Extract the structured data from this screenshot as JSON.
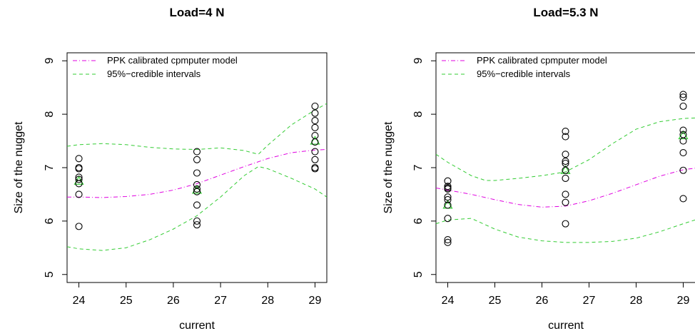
{
  "chart_data": [
    {
      "type": "scatter",
      "title": "Load=4 N",
      "xlabel": "current",
      "ylabel": "Size of the nugget",
      "xlim": [
        23.75,
        29.25
      ],
      "ylim": [
        4.85,
        9.15
      ],
      "xticks": [
        24,
        25,
        26,
        27,
        28,
        29
      ],
      "yticks": [
        5,
        6,
        7,
        8,
        9
      ],
      "legend": {
        "position": "top-left",
        "entries": [
          {
            "label": "PPK calibrated cpmputer model",
            "color": "#e000e0",
            "dash": "dashdot"
          },
          {
            "label": "95%−credible intervals",
            "color": "#33cc33",
            "dash": "dashed"
          }
        ]
      },
      "observations": [
        {
          "x": 24,
          "y": 5.9
        },
        {
          "x": 24,
          "y": 6.5
        },
        {
          "x": 24,
          "y": 6.7
        },
        {
          "x": 24,
          "y": 6.78
        },
        {
          "x": 24,
          "y": 6.82
        },
        {
          "x": 24,
          "y": 6.98
        },
        {
          "x": 24,
          "y": 7.0
        },
        {
          "x": 24,
          "y": 7.17
        },
        {
          "x": 26.5,
          "y": 5.93
        },
        {
          "x": 26.5,
          "y": 6.0
        },
        {
          "x": 26.5,
          "y": 6.3
        },
        {
          "x": 26.5,
          "y": 6.55
        },
        {
          "x": 26.5,
          "y": 6.6
        },
        {
          "x": 26.5,
          "y": 6.68
        },
        {
          "x": 26.5,
          "y": 6.9
        },
        {
          "x": 26.5,
          "y": 7.15
        },
        {
          "x": 26.5,
          "y": 7.3
        },
        {
          "x": 29,
          "y": 6.98
        },
        {
          "x": 29,
          "y": 7.0
        },
        {
          "x": 29,
          "y": 7.15
        },
        {
          "x": 29,
          "y": 7.3
        },
        {
          "x": 29,
          "y": 7.48
        },
        {
          "x": 29,
          "y": 7.6
        },
        {
          "x": 29,
          "y": 7.75
        },
        {
          "x": 29,
          "y": 7.88
        },
        {
          "x": 29,
          "y": 8.02
        },
        {
          "x": 29,
          "y": 8.15
        }
      ],
      "predictions": [
        {
          "x": 24,
          "y": 6.75
        },
        {
          "x": 26.5,
          "y": 6.58
        },
        {
          "x": 29,
          "y": 7.5
        }
      ],
      "series": [
        {
          "key": "model",
          "x": [
            23.75,
            24,
            24.5,
            25,
            25.5,
            26,
            26.5,
            27,
            27.5,
            28,
            28.5,
            29,
            29.25
          ],
          "values": [
            6.45,
            6.45,
            6.44,
            6.46,
            6.5,
            6.58,
            6.7,
            6.86,
            7.02,
            7.17,
            7.28,
            7.33,
            7.34
          ]
        },
        {
          "key": "upper",
          "x": [
            23.75,
            24,
            24.5,
            25,
            25.5,
            26,
            26.5,
            27,
            27.5,
            27.8,
            28,
            28.5,
            29,
            29.25
          ],
          "values": [
            7.4,
            7.43,
            7.45,
            7.43,
            7.38,
            7.35,
            7.34,
            7.37,
            7.32,
            7.25,
            7.42,
            7.8,
            8.08,
            8.2
          ]
        },
        {
          "key": "lower",
          "x": [
            23.75,
            24,
            24.5,
            25,
            25.5,
            26,
            26.5,
            27,
            27.5,
            27.8,
            28,
            28.5,
            29,
            29.25
          ],
          "values": [
            5.52,
            5.48,
            5.45,
            5.5,
            5.65,
            5.85,
            6.1,
            6.45,
            6.85,
            7.02,
            6.98,
            6.8,
            6.6,
            6.45
          ]
        }
      ],
      "colors": {
        "model": "#e000e0",
        "interval": "#33cc33",
        "prediction": "#33cc33",
        "point": "#000000"
      }
    },
    {
      "type": "scatter",
      "title": "Load=5.3 N",
      "xlabel": "current",
      "ylabel": "Size of the nugget",
      "xlim": [
        23.75,
        29.25
      ],
      "ylim": [
        4.85,
        9.15
      ],
      "xticks": [
        24,
        25,
        26,
        27,
        28,
        29
      ],
      "yticks": [
        5,
        6,
        7,
        8,
        9
      ],
      "legend": {
        "position": "top-left",
        "entries": [
          {
            "label": "PPK calibrated cpmputer model",
            "color": "#e000e0",
            "dash": "dashdot"
          },
          {
            "label": "95%−credible intervals",
            "color": "#33cc33",
            "dash": "dashed"
          }
        ]
      },
      "observations": [
        {
          "x": 24,
          "y": 5.6
        },
        {
          "x": 24,
          "y": 5.65
        },
        {
          "x": 24,
          "y": 6.05
        },
        {
          "x": 24,
          "y": 6.3
        },
        {
          "x": 24,
          "y": 6.4
        },
        {
          "x": 24,
          "y": 6.45
        },
        {
          "x": 24,
          "y": 6.6
        },
        {
          "x": 24,
          "y": 6.62
        },
        {
          "x": 24,
          "y": 6.65
        },
        {
          "x": 24,
          "y": 6.75
        },
        {
          "x": 26.5,
          "y": 5.95
        },
        {
          "x": 26.5,
          "y": 6.35
        },
        {
          "x": 26.5,
          "y": 6.5
        },
        {
          "x": 26.5,
          "y": 6.8
        },
        {
          "x": 26.5,
          "y": 6.95
        },
        {
          "x": 26.5,
          "y": 7.08
        },
        {
          "x": 26.5,
          "y": 7.12
        },
        {
          "x": 26.5,
          "y": 7.25
        },
        {
          "x": 26.5,
          "y": 7.58
        },
        {
          "x": 26.5,
          "y": 7.68
        },
        {
          "x": 29,
          "y": 6.42
        },
        {
          "x": 29,
          "y": 6.95
        },
        {
          "x": 29,
          "y": 7.28
        },
        {
          "x": 29,
          "y": 7.5
        },
        {
          "x": 29,
          "y": 7.62
        },
        {
          "x": 29,
          "y": 7.7
        },
        {
          "x": 29,
          "y": 8.15
        },
        {
          "x": 29,
          "y": 8.32
        },
        {
          "x": 29,
          "y": 8.37
        }
      ],
      "predictions": [
        {
          "x": 24,
          "y": 6.3
        },
        {
          "x": 26.5,
          "y": 6.95
        },
        {
          "x": 29,
          "y": 7.6
        }
      ],
      "series": [
        {
          "key": "model",
          "x": [
            23.75,
            24,
            24.5,
            25,
            25.5,
            26,
            26.5,
            27,
            27.5,
            28,
            28.5,
            29,
            29.25
          ],
          "values": [
            6.62,
            6.58,
            6.5,
            6.4,
            6.31,
            6.26,
            6.28,
            6.38,
            6.52,
            6.68,
            6.84,
            6.96,
            6.99
          ]
        },
        {
          "key": "upper",
          "x": [
            23.75,
            24,
            24.5,
            24.8,
            25,
            25.5,
            26,
            26.5,
            27,
            27.5,
            28,
            28.5,
            29,
            29.25
          ],
          "values": [
            7.25,
            7.1,
            6.85,
            6.76,
            6.76,
            6.8,
            6.85,
            6.92,
            7.15,
            7.45,
            7.72,
            7.86,
            7.92,
            7.93
          ]
        },
        {
          "key": "lower",
          "x": [
            23.75,
            24,
            24.5,
            25,
            25.5,
            26,
            26.5,
            27,
            27.5,
            28,
            28.5,
            29,
            29.25
          ],
          "values": [
            5.95,
            6.02,
            6.05,
            5.85,
            5.7,
            5.63,
            5.6,
            5.6,
            5.62,
            5.68,
            5.8,
            5.95,
            6.02
          ]
        }
      ],
      "colors": {
        "model": "#e000e0",
        "interval": "#33cc33",
        "prediction": "#33cc33",
        "point": "#000000"
      }
    }
  ]
}
